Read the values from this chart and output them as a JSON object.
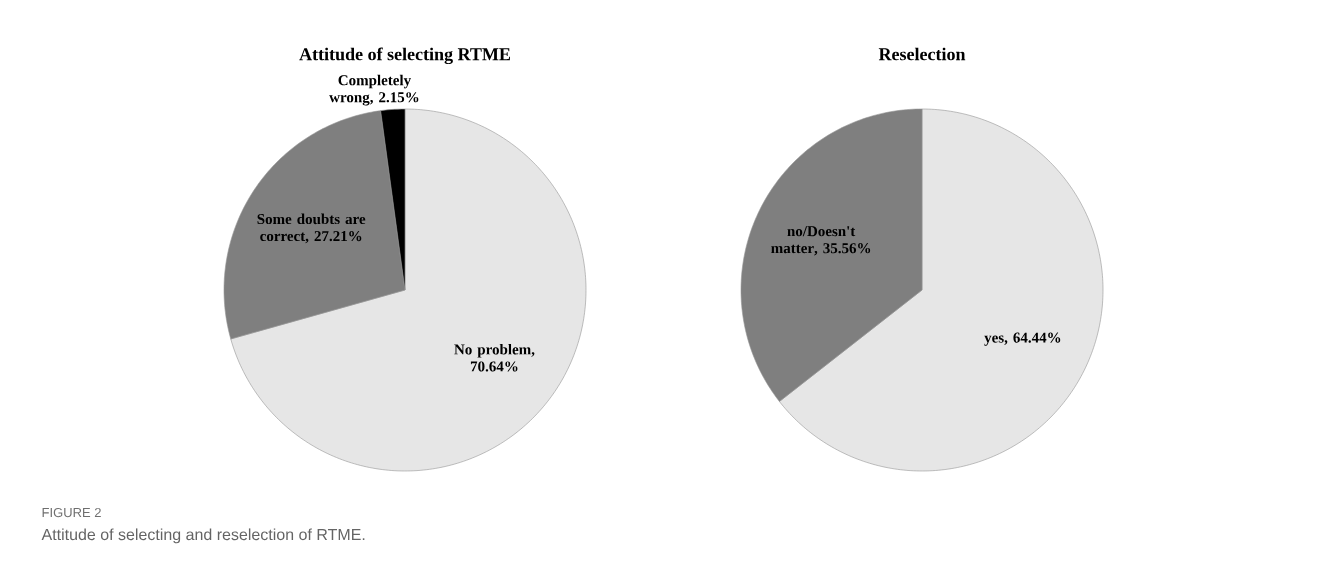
{
  "chart_data": [
    {
      "type": "pie",
      "title": "Attitude of selecting RTME",
      "categories": [
        "No problem",
        "Some doubts are correct",
        "Completely wrong"
      ],
      "values": [
        70.64,
        27.21,
        2.15
      ],
      "value_labels": [
        ", 70.64%",
        ", 27.21%",
        ", 2.15%"
      ],
      "colors": [
        "#e6e6e6",
        "#7f7f7f",
        "#000000"
      ],
      "annotations": [
        "FIGURE 2",
        "Attitude of selecting and reselection of RTME."
      ]
    },
    {
      "type": "pie",
      "title": "Reselection",
      "categories": [
        "yes",
        "no/Doesn't matter"
      ],
      "values": [
        64.44,
        35.56
      ],
      "value_labels": [
        ", 64.44%",
        ", 35.56%"
      ],
      "colors": [
        "#e6e6e6",
        "#7f7f7f"
      ]
    }
  ]
}
